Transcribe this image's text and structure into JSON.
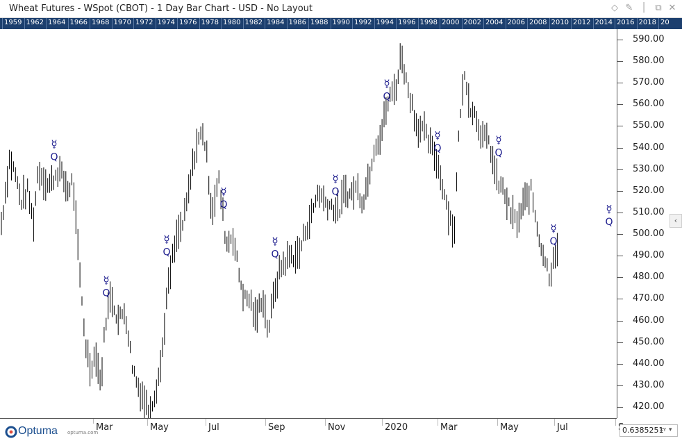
{
  "window": {
    "title": "Wheat Futures - WSpot (CBOT) - 1 Day Bar Chart - USD - No Layout",
    "icons": [
      "diamond-icon",
      "pin-icon",
      "restore-icon",
      "close-icon"
    ]
  },
  "overview_years": [
    "1959",
    "1962",
    "1964",
    "1966",
    "1968",
    "1970",
    "1972",
    "1974",
    "1976",
    "1978",
    "1980",
    "1982",
    "1984",
    "1986",
    "1988",
    "1990",
    "1992",
    "1994",
    "1996",
    "1998",
    "2000",
    "2002",
    "2004",
    "2006",
    "2008",
    "2010",
    "2012",
    "2014",
    "2016",
    "2018",
    "20"
  ],
  "x_axis_labels": [
    "Mar",
    "May",
    "Jul",
    "Sep",
    "Nov",
    "2020",
    "Mar",
    "May",
    "Jul",
    "S"
  ],
  "y_axis_labels": [
    "590.00",
    "580.00",
    "570.00",
    "560.00",
    "550.00",
    "540.00",
    "530.00",
    "520.00",
    "510.00",
    "500.00",
    "490.00",
    "480.00",
    "470.00",
    "460.00",
    "450.00",
    "440.00",
    "430.00",
    "420.00"
  ],
  "colors": {
    "overview_bg": "#1c3f6e",
    "bar": "#000000",
    "glyph": "#1a1a8c",
    "logo": "#1c4f8f"
  },
  "logo": {
    "name": "Optuma",
    "url": "optuma.com"
  },
  "scale": {
    "value": "0.6385251",
    "mode": "XY"
  },
  "chart_data": {
    "type": "bar",
    "title": "Wheat Futures - WSpot (CBOT) - 1 Day Bar Chart - USD",
    "ylim": [
      415,
      595
    ],
    "x_ticks": [
      "Mar",
      "May",
      "Jul",
      "Sep",
      "Nov",
      "2020",
      "Mar",
      "May",
      "Jul",
      "S"
    ],
    "anchors": [
      [
        0,
        500
      ],
      [
        8,
        520
      ],
      [
        14,
        535
      ],
      [
        22,
        528
      ],
      [
        30,
        515
      ],
      [
        40,
        520
      ],
      [
        48,
        505
      ],
      [
        55,
        530
      ],
      [
        70,
        522
      ],
      [
        85,
        530
      ],
      [
        98,
        520
      ],
      [
        105,
        525
      ],
      [
        115,
        480
      ],
      [
        123,
        450
      ],
      [
        130,
        438
      ],
      [
        138,
        445
      ],
      [
        145,
        430
      ],
      [
        152,
        460
      ],
      [
        160,
        472
      ],
      [
        170,
        460
      ],
      [
        180,
        465
      ],
      [
        190,
        440
      ],
      [
        198,
        430
      ],
      [
        206,
        425
      ],
      [
        214,
        418
      ],
      [
        222,
        425
      ],
      [
        232,
        440
      ],
      [
        240,
        470
      ],
      [
        248,
        488
      ],
      [
        256,
        500
      ],
      [
        264,
        505
      ],
      [
        272,
        520
      ],
      [
        282,
        540
      ],
      [
        292,
        548
      ],
      [
        298,
        535
      ],
      [
        305,
        510
      ],
      [
        315,
        525
      ],
      [
        320,
        512
      ],
      [
        326,
        495
      ],
      [
        335,
        500
      ],
      [
        345,
        480
      ],
      [
        352,
        470
      ],
      [
        360,
        470
      ],
      [
        368,
        460
      ],
      [
        378,
        472
      ],
      [
        386,
        455
      ],
      [
        396,
        475
      ],
      [
        405,
        485
      ],
      [
        418,
        490
      ],
      [
        430,
        490
      ],
      [
        440,
        502
      ],
      [
        450,
        510
      ],
      [
        458,
        520
      ],
      [
        468,
        515
      ],
      [
        478,
        513
      ],
      [
        488,
        510
      ],
      [
        496,
        520
      ],
      [
        504,
        518
      ],
      [
        514,
        522
      ],
      [
        522,
        515
      ],
      [
        530,
        525
      ],
      [
        540,
        542
      ],
      [
        548,
        545
      ],
      [
        556,
        558
      ],
      [
        564,
        565
      ],
      [
        572,
        570
      ],
      [
        578,
        585
      ],
      [
        584,
        572
      ],
      [
        592,
        562
      ],
      [
        600,
        550
      ],
      [
        610,
        548
      ],
      [
        618,
        542
      ],
      [
        628,
        535
      ],
      [
        638,
        522
      ],
      [
        646,
        510
      ],
      [
        654,
        500
      ],
      [
        662,
        555
      ],
      [
        670,
        575
      ],
      [
        676,
        560
      ],
      [
        685,
        555
      ],
      [
        695,
        545
      ],
      [
        705,
        542
      ],
      [
        715,
        525
      ],
      [
        725,
        520
      ],
      [
        735,
        510
      ],
      [
        745,
        505
      ],
      [
        755,
        515
      ],
      [
        765,
        520
      ],
      [
        775,
        500
      ],
      [
        785,
        488
      ],
      [
        792,
        480
      ],
      [
        798,
        493
      ],
      [
        804,
        490
      ]
    ],
    "annotations": [
      {
        "x": 78,
        "label": "Q",
        "symbol": "mercury",
        "y": 540
      },
      {
        "x": 153,
        "label": "Q",
        "symbol": "mercury",
        "y": 477
      },
      {
        "x": 240,
        "label": "Q",
        "symbol": "mercury",
        "y": 496
      },
      {
        "x": 322,
        "label": "Q",
        "symbol": "mercury",
        "y": 518
      },
      {
        "x": 396,
        "label": "Q",
        "symbol": "mercury",
        "y": 495
      },
      {
        "x": 483,
        "label": "Q",
        "symbol": "mercury",
        "y": 524
      },
      {
        "x": 557,
        "label": "Q",
        "symbol": "mercury",
        "y": 568
      },
      {
        "x": 630,
        "label": "Q",
        "symbol": "mercury",
        "y": 544
      },
      {
        "x": 718,
        "label": "Q",
        "symbol": "mercury",
        "y": 542
      },
      {
        "x": 797,
        "label": "Q",
        "symbol": "mercury",
        "y": 501
      },
      {
        "x": 877,
        "label": "Q",
        "symbol": "mercury",
        "y": 510
      }
    ]
  }
}
